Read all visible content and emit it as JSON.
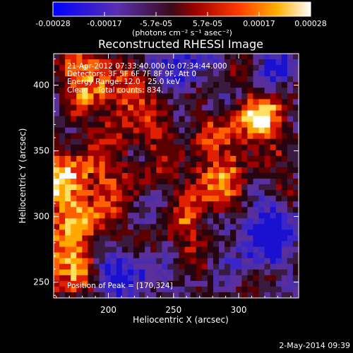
{
  "chart_data": {
    "type": "heatmap",
    "title": "Reconstructed RHESSI Image",
    "colorbar": {
      "tick_labels": [
        "-0.00028",
        "-0.00017",
        "-5.7e-05",
        "5.7e-05",
        "0.00017",
        "0.00028"
      ],
      "range": [
        -0.00028,
        0.00028
      ],
      "unit_label": "(photons cm⁻² s⁻¹ asec⁻²)",
      "colormap": [
        "#0000ff",
        "#5a2fb0",
        "#3a0a1a",
        "#9b0000",
        "#ff3a00",
        "#ffb000",
        "#ffffff"
      ]
    },
    "annotations": [
      "21-Apr-2012 07:33:40.000 to 07:34:44.000",
      "Detectors: 3F 5F 6F 7F 8F 9F, Att 0",
      "Energy Range: 12.0 - 25.0 keV",
      "Clean    Total counts: 834."
    ],
    "peak_label": "Position of Peak = [170,324]",
    "peak": {
      "x": 170,
      "y": 324
    },
    "xlabel": "Heliocentric X (arcsec)",
    "ylabel": "Heliocentric Y (arcsec)",
    "xlim": [
      158,
      346
    ],
    "ylim": [
      238,
      424
    ],
    "x_ticks": [
      200,
      250,
      300
    ],
    "x_tick_labels": [
      "200",
      "250",
      "300"
    ],
    "y_ticks": [
      250,
      300,
      350,
      400
    ],
    "y_tick_labels": [
      "250",
      "300",
      "350",
      "400"
    ],
    "grid": false,
    "timestamp": "2-May-2014 09:39"
  }
}
